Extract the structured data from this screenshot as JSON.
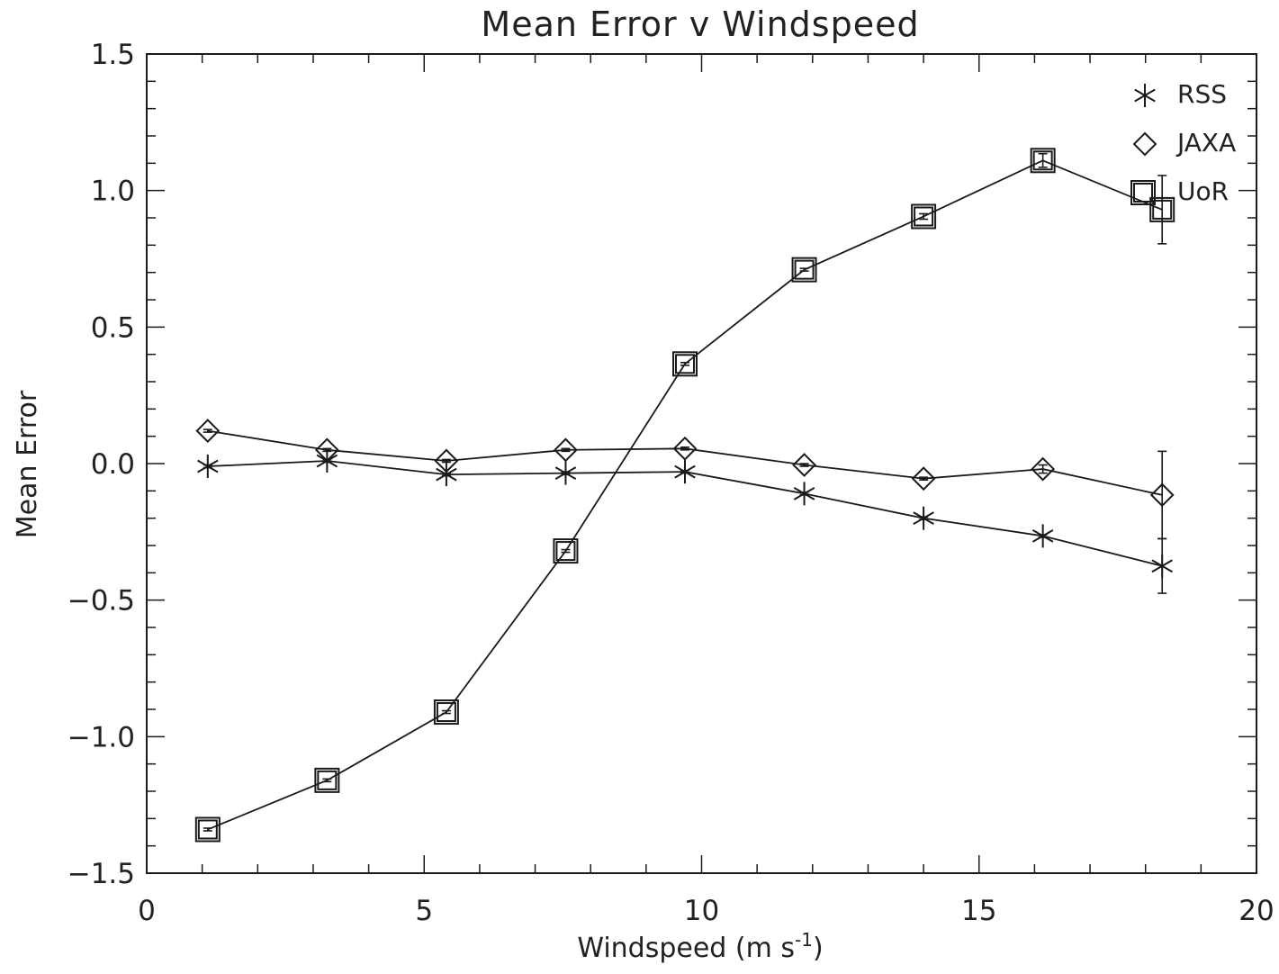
{
  "chart_data": {
    "type": "line",
    "title": "Mean Error v Windspeed",
    "xlabel": "Windspeed (m s",
    "xlabel_sup": "-1",
    "xlabel_close": ")",
    "ylabel": "Mean Error",
    "xlim": [
      0,
      20
    ],
    "ylim": [
      -1.5,
      1.5
    ],
    "x_ticks": [
      0,
      5,
      10,
      15,
      20
    ],
    "x_tick_labels": [
      "0",
      "5",
      "10",
      "15",
      "20"
    ],
    "y_ticks": [
      -1.5,
      -1.0,
      -0.5,
      0.0,
      0.5,
      1.0,
      1.5
    ],
    "y_tick_labels": [
      "−1.5",
      "−1.0",
      "−0.5",
      "0.0",
      "0.5",
      "1.0",
      "1.5"
    ],
    "grid": false,
    "legend_position": "top-right",
    "series": [
      {
        "name": "RSS",
        "marker": "asterisk",
        "x": [
          1.1,
          3.25,
          5.4,
          7.55,
          9.7,
          11.85,
          14.0,
          16.15,
          18.3
        ],
        "y": [
          -0.01,
          0.01,
          -0.04,
          -0.035,
          -0.03,
          -0.11,
          -0.2,
          -0.265,
          -0.375
        ],
        "err": [
          0,
          0,
          0,
          0,
          0,
          0,
          0,
          0,
          0.1
        ]
      },
      {
        "name": "JAXA",
        "marker": "diamond",
        "x": [
          1.1,
          3.25,
          5.4,
          7.55,
          9.7,
          11.85,
          14.0,
          16.15,
          18.3
        ],
        "y": [
          0.12,
          0.05,
          0.01,
          0.05,
          0.055,
          -0.005,
          -0.055,
          -0.02,
          -0.115
        ],
        "err": [
          0,
          0,
          0,
          0,
          0,
          0,
          0,
          0.015,
          0.16
        ]
      },
      {
        "name": "UoR",
        "marker": "square",
        "x": [
          1.1,
          3.25,
          5.4,
          7.55,
          9.7,
          11.85,
          14.0,
          16.15,
          18.3
        ],
        "y": [
          -1.34,
          -1.16,
          -0.91,
          -0.32,
          0.365,
          0.71,
          0.905,
          1.11,
          0.93
        ],
        "err": [
          0,
          0,
          0,
          0,
          0,
          0,
          0.01,
          0.025,
          0.125
        ]
      }
    ]
  }
}
